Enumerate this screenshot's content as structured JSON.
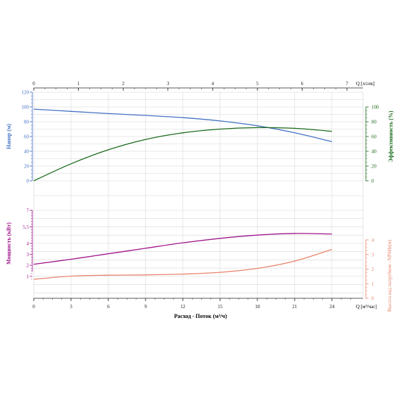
{
  "colors": {
    "head": "#4472c4",
    "efficiency": "#1a6b1a",
    "power": "#a0168c",
    "npsh": "#e8846c",
    "axis": "#222222",
    "grid": "#d6d6d6"
  },
  "top_axis": {
    "label": "Q [л/сек]",
    "ticks": [
      "0",
      "1",
      "2",
      "3",
      "4",
      "5",
      "6",
      "7"
    ]
  },
  "bottom_axis": {
    "label": "Q [м³/час]",
    "title": "Расход - Поток (м³/ч)",
    "ticks": [
      "0",
      "3",
      "6",
      "9",
      "12",
      "15",
      "18",
      "21",
      "24"
    ]
  },
  "upper_left_axis": {
    "title": "Напор (м)",
    "ticks": [
      "0",
      "20",
      "40",
      "60",
      "80",
      "100",
      "120"
    ]
  },
  "upper_right_axis": {
    "title": "Эффективность (%)",
    "ticks": [
      "0",
      "20",
      "40",
      "60",
      "80",
      "100"
    ]
  },
  "lower_left_axis": {
    "title": "Мощность (кВт)",
    "ticks": [
      "1",
      "2",
      "3",
      "4",
      "5,5",
      "7"
    ]
  },
  "lower_right_axis": {
    "title": "Высота над патрубком - NPSHr(м)",
    "ticks": [
      "0",
      "1",
      "2",
      "3",
      "4"
    ]
  },
  "chart_data": [
    {
      "type": "line",
      "panel": "upper",
      "x_unit": "Q [м³/час]",
      "xlim": [
        0,
        26.5
      ],
      "secondary_x": {
        "label": "Q [л/сек]",
        "lim": [
          0,
          7.36
        ]
      },
      "y_left": {
        "title": "Напор (м)",
        "lim": [
          0,
          120
        ]
      },
      "y_right": {
        "title": "Эффективность (%)",
        "lim": [
          0,
          100
        ]
      },
      "grid": true,
      "series": [
        {
          "name": "Напор (м)",
          "axis": "left",
          "x": [
            0,
            3,
            6,
            9,
            12,
            15,
            18,
            21,
            24
          ],
          "y": [
            97,
            94,
            91,
            88.5,
            85.5,
            81,
            74.5,
            65,
            53
          ]
        },
        {
          "name": "Эффективность (%)",
          "axis": "right",
          "x": [
            0,
            3,
            6,
            9,
            12,
            15,
            18,
            21,
            24
          ],
          "y": [
            0,
            23,
            42,
            56,
            65,
            70,
            72,
            71,
            67
          ]
        }
      ]
    },
    {
      "type": "line",
      "panel": "lower",
      "x_unit": "Q [м³/час]",
      "xlim": [
        0,
        26.5
      ],
      "y_left": {
        "title": "Мощность (кВт)",
        "lim": [
          -1,
          7
        ]
      },
      "y_right": {
        "title": "Высота над патрубком - NPSHr(м)",
        "lim": [
          0,
          4
        ]
      },
      "grid": true,
      "series": [
        {
          "name": "Мощность (кВт)",
          "axis": "left",
          "x": [
            0,
            3,
            6,
            9,
            12,
            15,
            18,
            21,
            24
          ],
          "y": [
            2.1,
            2.55,
            3.05,
            3.55,
            4.05,
            4.45,
            4.75,
            4.9,
            4.85
          ]
        },
        {
          "name": "Высота над патрубком - NPSHr(м)",
          "axis": "right",
          "x": [
            0,
            3,
            6,
            9,
            12,
            15,
            18,
            21,
            24
          ],
          "y": [
            1.3,
            1.52,
            1.58,
            1.6,
            1.66,
            1.78,
            2.05,
            2.55,
            3.35
          ]
        }
      ]
    }
  ]
}
